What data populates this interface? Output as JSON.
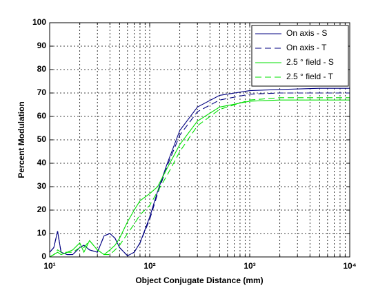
{
  "chart_data": {
    "type": "line",
    "xlabel": "Object Conjugate Distance (mm)",
    "ylabel": "Percent Modulation",
    "xscale": "log",
    "grid": true,
    "minor_grid": true,
    "legend": "upper right",
    "xlim": [
      10,
      10000
    ],
    "ylim": [
      0,
      100
    ],
    "xticks": [
      {
        "value": 10,
        "label": "10¹"
      },
      {
        "value": 100,
        "label": "10²"
      },
      {
        "value": 1000,
        "label": "10³"
      },
      {
        "value": 10000,
        "label": "10⁴"
      }
    ],
    "xminorticks": [
      20,
      30,
      40,
      50,
      60,
      70,
      80,
      90,
      200,
      300,
      400,
      500,
      600,
      700,
      800,
      900,
      2000,
      3000,
      4000,
      5000,
      6000,
      7000,
      8000,
      9000
    ],
    "yticks": [
      0,
      10,
      20,
      30,
      40,
      50,
      60,
      70,
      80,
      90,
      100
    ],
    "x": [
      10,
      11,
      12,
      13,
      15,
      17,
      20,
      22,
      25,
      30,
      35,
      40,
      45,
      50,
      60,
      70,
      80,
      100,
      120,
      150,
      200,
      300,
      500,
      1000,
      2000,
      5000,
      10000
    ],
    "series": [
      {
        "name": "On axis - S",
        "color": "#000080",
        "dash": false,
        "values": [
          2,
          4,
          11,
          2,
          1,
          1,
          4,
          5,
          3,
          2,
          9,
          10,
          8,
          4,
          0.5,
          2,
          6,
          17,
          28,
          40,
          54,
          64,
          69,
          71,
          71.5,
          72,
          72
        ]
      },
      {
        "name": "On axis - T",
        "color": "#000080",
        "dash": true,
        "values": [
          2,
          4,
          11,
          2,
          1,
          1,
          4,
          5,
          3,
          2,
          9,
          10,
          8,
          4,
          0.5,
          2,
          6,
          16,
          27,
          39,
          52,
          62,
          67,
          69.5,
          70,
          70,
          70
        ]
      },
      {
        "name": "2.5 ° field - S",
        "color": "#00e000",
        "dash": false,
        "values": [
          0,
          1,
          2,
          1,
          2,
          3,
          6,
          2,
          7,
          3,
          1,
          3,
          5,
          8,
          15,
          20,
          24,
          27,
          30,
          38,
          48,
          58,
          64,
          66.5,
          67,
          67,
          67
        ]
      },
      {
        "name": "2.5 ° field - T",
        "color": "#00e000",
        "dash": true,
        "values": [
          0,
          1,
          3,
          2,
          2,
          2,
          4,
          4,
          7,
          3,
          1,
          1,
          3,
          5,
          10,
          14,
          18,
          22,
          28,
          35,
          45,
          56,
          63,
          67,
          68,
          68,
          68
        ]
      }
    ]
  }
}
